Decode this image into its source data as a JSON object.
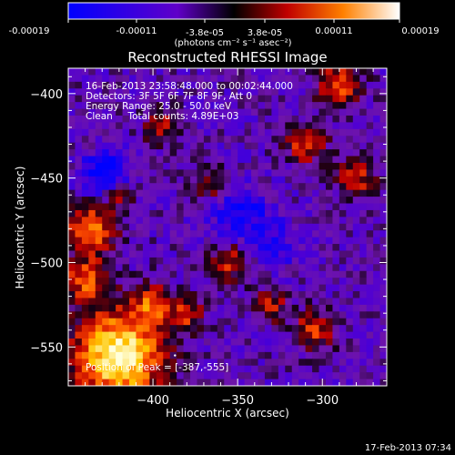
{
  "chart_data": {
    "type": "heatmap",
    "title": "Reconstructed RHESSI Image",
    "xlabel": "Heliocentric X (arcsec)",
    "ylabel": "Heliocentric Y (arcsec)",
    "xlim": [
      -450,
      -262
    ],
    "ylim": [
      -573,
      -385
    ],
    "x_ticks": [
      -400,
      -350,
      -300
    ],
    "y_ticks": [
      -400,
      -450,
      -500,
      -550
    ],
    "colorbar": {
      "label_html": "(photons cm⁻² s⁻¹ asec⁻²)",
      "range": [
        -0.00019,
        0.00019
      ],
      "tick_labels_top": [
        "-3.8e-05",
        "3.8e-05"
      ],
      "tick_labels_bottom": [
        "-0.00019",
        "-0.00011",
        "0.00011",
        "0.00019"
      ]
    },
    "info_lines": [
      "16-Feb-2013 23:58:48.000 to 00:02:44.000",
      "Detectors: 3F 5F 6F 7F 8F 9F, Att 0",
      "Energy Range: 25.0 - 50.0 keV",
      "Clean     Total counts: 4.89E+03"
    ],
    "peak_label": "Position of Peak = [-387,-555]",
    "peak_position": [
      -387,
      -555
    ],
    "grid_size": [
      47,
      47
    ],
    "hot_regions": [
      {
        "x": -420,
        "y": -555,
        "sigma": 18,
        "amp": 1.9
      },
      {
        "x": -440,
        "y": -510,
        "sigma": 9,
        "amp": 1.0
      },
      {
        "x": -437,
        "y": -480,
        "sigma": 10,
        "amp": 1.2
      },
      {
        "x": -400,
        "y": -525,
        "sigma": 8,
        "amp": 0.9
      },
      {
        "x": -380,
        "y": -530,
        "sigma": 7,
        "amp": 0.8
      },
      {
        "x": -355,
        "y": -500,
        "sigma": 8,
        "amp": 0.8
      },
      {
        "x": -310,
        "y": -430,
        "sigma": 8,
        "amp": 0.9
      },
      {
        "x": -290,
        "y": -395,
        "sigma": 9,
        "amp": 1.0
      },
      {
        "x": -280,
        "y": -450,
        "sigma": 8,
        "amp": 0.8
      },
      {
        "x": -305,
        "y": -540,
        "sigma": 8,
        "amp": 0.9
      },
      {
        "x": -330,
        "y": -525,
        "sigma": 7,
        "amp": 0.7
      },
      {
        "x": -365,
        "y": -455,
        "sigma": 7,
        "amp": 0.7
      },
      {
        "x": -395,
        "y": -420,
        "sigma": 7,
        "amp": 0.7
      },
      {
        "x": -420,
        "y": -460,
        "sigma": 6,
        "amp": 0.6
      }
    ],
    "cold_regions": [
      {
        "x": -428,
        "y": -448,
        "sigma": 9,
        "amp": 0.9
      },
      {
        "x": -350,
        "y": -470,
        "sigma": 12,
        "amp": 0.6
      },
      {
        "x": -330,
        "y": -490,
        "sigma": 10,
        "amp": 0.5
      }
    ]
  },
  "timestamp": "17-Feb-2013 07:34"
}
